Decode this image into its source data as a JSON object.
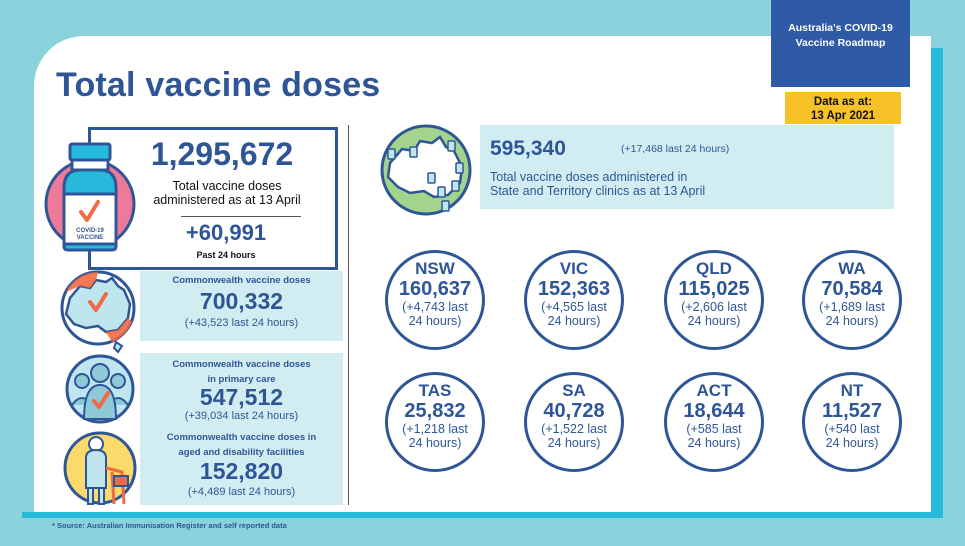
{
  "header": {
    "title": "Total vaccine doses",
    "roadmap_line1": "Australia's COVID-19",
    "roadmap_line2": "Vaccine Roadmap",
    "data_as_at_line1": "Data as at:",
    "data_as_at_line2": "13 Apr 2021"
  },
  "total": {
    "value": "1,295,672",
    "label_line1": "Total vaccine doses",
    "label_line2": "administered as at 13 April",
    "delta": "+60,991",
    "delta_label": "Past 24 hours",
    "bottle_text_line1": "COVID-19",
    "bottle_text_line2": "VACCINE"
  },
  "commonwealth": {
    "label": "Commonwealth vaccine doses",
    "value": "700,332",
    "delta": "(+43,523 last 24 hours)"
  },
  "primary_care": {
    "label_line1": "Commonwealth vaccine doses",
    "label_line2": "in primary care",
    "value": "547,512",
    "delta": "(+39,034 last 24 hours)"
  },
  "aged_care": {
    "label_line1": "Commonwealth vaccine doses in",
    "label_line2": "aged and disability facilities",
    "value": "152,820",
    "delta": "(+4,489 last 24 hours)"
  },
  "state_clinics": {
    "value": "595,340",
    "delta": "(+17,468 last 24 hours)",
    "label_line1": "Total vaccine doses administered in",
    "label_line2": "State and Territory clinics as at 13 April"
  },
  "states": [
    {
      "name": "NSW",
      "value": "160,637",
      "delta1": "(+4,743 last",
      "delta2": "24 hours)"
    },
    {
      "name": "VIC",
      "value": "152,363",
      "delta1": "(+4,565 last",
      "delta2": "24 hours)"
    },
    {
      "name": "QLD",
      "value": "115,025",
      "delta1": "(+2,606 last",
      "delta2": "24 hours)"
    },
    {
      "name": "WA",
      "value": "70,584",
      "delta1": "(+1,689 last",
      "delta2": "24 hours)"
    },
    {
      "name": "TAS",
      "value": "25,832",
      "delta1": "(+1,218 last",
      "delta2": "24 hours)"
    },
    {
      "name": "SA",
      "value": "40,728",
      "delta1": "(+1,522 last",
      "delta2": "24 hours)"
    },
    {
      "name": "ACT",
      "value": "18,644",
      "delta1": "(+585 last",
      "delta2": "24 hours)"
    },
    {
      "name": "NT",
      "value": "11,527",
      "delta1": "(+540 last",
      "delta2": "24 hours)"
    }
  ],
  "footnote": "* Source: Australian Immunisation Register and self reported data",
  "colors": {
    "navy": "#2e5697",
    "background": "#8ad3dc",
    "accent_blue": "#27b9dc",
    "light_box": "#d2edf2",
    "yellow": "#f7c227",
    "pink": "#ee7a9a",
    "orange": "#ef6a45"
  },
  "icons": [
    "vaccine-bottle-icon",
    "australia-map-icon",
    "crowd-icon",
    "elderly-person-icon",
    "australia-map-clinics-icon"
  ]
}
